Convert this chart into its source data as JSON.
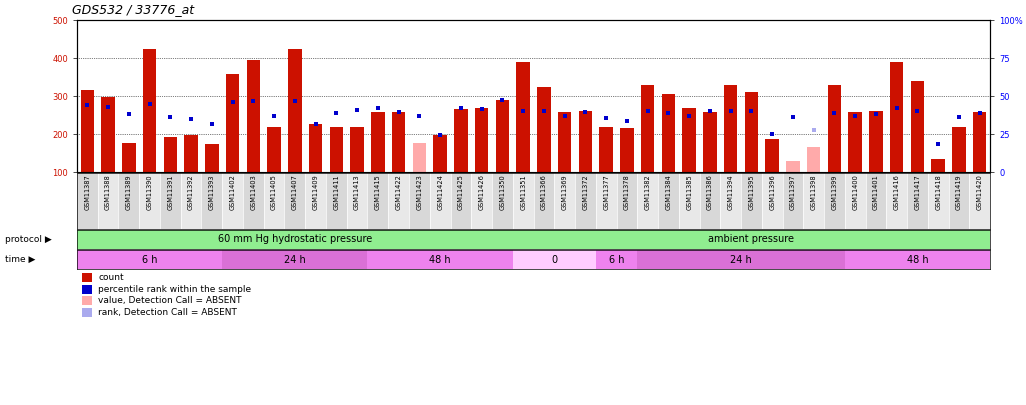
{
  "title": "GDS532 / 33776_at",
  "samples": [
    "GSM11387",
    "GSM11388",
    "GSM11389",
    "GSM11390",
    "GSM11391",
    "GSM11392",
    "GSM11393",
    "GSM11402",
    "GSM11403",
    "GSM11405",
    "GSM11407",
    "GSM11409",
    "GSM11411",
    "GSM11413",
    "GSM11415",
    "GSM11422",
    "GSM11423",
    "GSM11424",
    "GSM11425",
    "GSM11426",
    "GSM11350",
    "GSM11351",
    "GSM11366",
    "GSM11369",
    "GSM11372",
    "GSM11377",
    "GSM11378",
    "GSM11382",
    "GSM11384",
    "GSM11385",
    "GSM11386",
    "GSM11394",
    "GSM11395",
    "GSM11396",
    "GSM11397",
    "GSM11398",
    "GSM11399",
    "GSM11400",
    "GSM11401",
    "GSM11416",
    "GSM11417",
    "GSM11418",
    "GSM11419",
    "GSM11420"
  ],
  "count_values": [
    315,
    297,
    178,
    425,
    193,
    197,
    173,
    358,
    395,
    218,
    425,
    228,
    218,
    218,
    258,
    258,
    178,
    197,
    265,
    268,
    290,
    390,
    325,
    258,
    262,
    218,
    215,
    330,
    305,
    268,
    258,
    330,
    310,
    188,
    130,
    165,
    330,
    258,
    262,
    390,
    340,
    135,
    218,
    258
  ],
  "absent_count": [
    false,
    false,
    false,
    false,
    false,
    false,
    false,
    false,
    false,
    false,
    false,
    false,
    false,
    false,
    false,
    false,
    true,
    false,
    false,
    false,
    false,
    false,
    false,
    false,
    false,
    false,
    false,
    false,
    false,
    false,
    false,
    false,
    false,
    false,
    true,
    true,
    false,
    false,
    false,
    false,
    false,
    false,
    false,
    false
  ],
  "rank_values": [
    277,
    272,
    252,
    280,
    245,
    240,
    228,
    285,
    288,
    247,
    288,
    228,
    255,
    263,
    268,
    258,
    248,
    197,
    268,
    265,
    290,
    260,
    260,
    248,
    258,
    242,
    235,
    260,
    255,
    248,
    260,
    260,
    262,
    200,
    245,
    210,
    255,
    248,
    252,
    268,
    260,
    175,
    245,
    255
  ],
  "absent_rank": [
    false,
    false,
    false,
    false,
    false,
    false,
    false,
    false,
    false,
    false,
    false,
    false,
    false,
    false,
    false,
    false,
    false,
    false,
    false,
    false,
    false,
    false,
    false,
    false,
    false,
    false,
    false,
    false,
    false,
    false,
    false,
    false,
    false,
    false,
    false,
    true,
    false,
    false,
    false,
    false,
    false,
    false,
    false,
    false
  ],
  "protocol_groups": [
    {
      "label": "60 mm Hg hydrostatic pressure",
      "start": 0,
      "end": 21,
      "color": "#90ee90"
    },
    {
      "label": "ambient pressure",
      "start": 21,
      "end": 44,
      "color": "#90ee90"
    }
  ],
  "time_groups": [
    {
      "label": "6 h",
      "start": 0,
      "end": 7,
      "color": "#ee82ee"
    },
    {
      "label": "24 h",
      "start": 7,
      "end": 14,
      "color": "#da70d6"
    },
    {
      "label": "48 h",
      "start": 14,
      "end": 21,
      "color": "#ee82ee"
    },
    {
      "label": "0",
      "start": 21,
      "end": 25,
      "color": "#ffccff"
    },
    {
      "label": "6 h",
      "start": 25,
      "end": 27,
      "color": "#ee82ee"
    },
    {
      "label": "24 h",
      "start": 27,
      "end": 37,
      "color": "#da70d6"
    },
    {
      "label": "48 h",
      "start": 37,
      "end": 44,
      "color": "#ee82ee"
    }
  ],
  "ylim_min": 100,
  "ylim_max": 500,
  "yticks": [
    100,
    200,
    300,
    400,
    500
  ],
  "y2ticks": [
    0,
    25,
    50,
    75,
    100
  ],
  "bar_color": "#cc1100",
  "bar_absent_color": "#ffaaaa",
  "rank_color": "#0000cc",
  "rank_absent_color": "#aaaaee",
  "bar_width": 0.65,
  "title_fontsize": 9,
  "tick_fontsize": 6,
  "axis_label_fontsize": 6.5,
  "strip_fontsize": 7,
  "legend_fontsize": 6.5
}
